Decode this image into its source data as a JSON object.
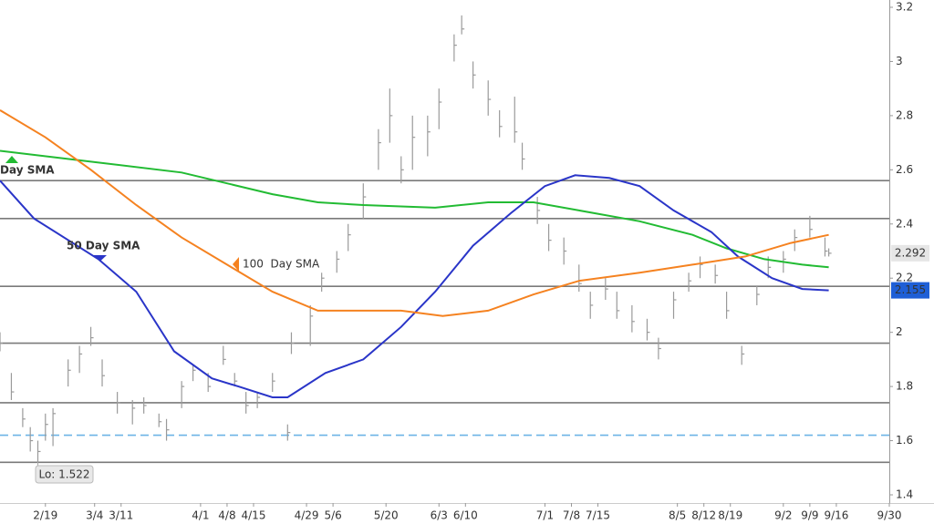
{
  "chart_data": {
    "type": "ohlc",
    "xlim": [
      "2/7",
      "9/30"
    ],
    "xticks": [
      "2/19",
      "3/4",
      "3/11",
      "4/1",
      "4/8",
      "4/15",
      "4/29",
      "5/6",
      "5/20",
      "6/3",
      "6/10",
      "7/1",
      "7/8",
      "7/15",
      "8/5",
      "8/12",
      "8/19",
      "9/2",
      "9/9",
      "9/16",
      "9/30"
    ],
    "ylim": [
      1.4,
      3.2
    ],
    "yticks": [
      1.4,
      1.6,
      1.8,
      2,
      2.2,
      2.4,
      2.6,
      2.8,
      3,
      3.2
    ],
    "bars": {
      "color": "#9a9a9a",
      "x": [
        "2/7",
        "2/10",
        "2/13",
        "2/15",
        "2/17",
        "2/19",
        "2/21",
        "2/25",
        "2/28",
        "3/3",
        "3/6",
        "3/10",
        "3/14",
        "3/17",
        "3/21",
        "3/23",
        "3/27",
        "3/30",
        "4/3",
        "4/7",
        "4/10",
        "4/13",
        "4/16",
        "4/20",
        "4/24",
        "4/25",
        "4/30",
        "5/3",
        "5/7",
        "5/10",
        "5/14",
        "5/18",
        "5/21",
        "5/24",
        "5/27",
        "5/31",
        "6/3",
        "6/7",
        "6/9",
        "6/12",
        "6/16",
        "6/19",
        "6/23",
        "6/25",
        "6/29",
        "7/2",
        "7/6",
        "7/10",
        "7/13",
        "7/17",
        "7/20",
        "7/24",
        "7/28",
        "7/31",
        "8/4",
        "8/8",
        "8/11",
        "8/15",
        "8/18",
        "8/22",
        "8/26",
        "8/29",
        "9/2",
        "9/5",
        "9/9",
        "9/13",
        "9/14"
      ],
      "high": [
        2.0,
        1.85,
        1.72,
        1.65,
        1.6,
        1.7,
        1.72,
        1.9,
        1.95,
        2.02,
        1.9,
        1.78,
        1.75,
        1.76,
        1.7,
        1.68,
        1.82,
        1.88,
        1.85,
        1.95,
        1.85,
        1.78,
        1.78,
        1.85,
        1.66,
        2.0,
        2.1,
        2.22,
        2.3,
        2.4,
        2.55,
        2.75,
        2.9,
        2.65,
        2.8,
        2.8,
        2.9,
        3.1,
        3.17,
        3.0,
        2.93,
        2.82,
        2.87,
        2.7,
        2.5,
        2.4,
        2.35,
        2.25,
        2.15,
        2.2,
        2.15,
        2.1,
        2.05,
        1.98,
        2.15,
        2.22,
        2.28,
        2.25,
        2.15,
        1.95,
        2.17,
        2.28,
        2.3,
        2.38,
        2.43,
        2.35,
        2.31
      ],
      "low": [
        1.93,
        1.75,
        1.65,
        1.56,
        1.522,
        1.6,
        1.58,
        1.8,
        1.85,
        1.95,
        1.8,
        1.7,
        1.66,
        1.7,
        1.65,
        1.6,
        1.72,
        1.82,
        1.78,
        1.88,
        1.8,
        1.7,
        1.72,
        1.78,
        1.6,
        1.92,
        1.95,
        2.15,
        2.22,
        2.3,
        2.42,
        2.6,
        2.7,
        2.55,
        2.6,
        2.65,
        2.75,
        3.0,
        3.1,
        2.9,
        2.8,
        2.72,
        2.7,
        2.6,
        2.4,
        2.3,
        2.25,
        2.15,
        2.05,
        2.12,
        2.05,
        2.0,
        1.97,
        1.9,
        2.05,
        2.15,
        2.2,
        2.18,
        2.05,
        1.88,
        2.1,
        2.2,
        2.22,
        2.3,
        2.35,
        2.28,
        2.28
      ],
      "close": [
        1.96,
        1.78,
        1.68,
        1.6,
        1.56,
        1.66,
        1.7,
        1.86,
        1.92,
        1.98,
        1.84,
        1.74,
        1.72,
        1.73,
        1.67,
        1.64,
        1.8,
        1.86,
        1.8,
        1.9,
        1.82,
        1.73,
        1.76,
        1.82,
        1.63,
        1.96,
        2.06,
        2.2,
        2.27,
        2.36,
        2.5,
        2.7,
        2.8,
        2.6,
        2.72,
        2.74,
        2.85,
        3.06,
        3.12,
        2.95,
        2.86,
        2.76,
        2.74,
        2.64,
        2.45,
        2.34,
        2.3,
        2.18,
        2.1,
        2.16,
        2.08,
        2.04,
        2.0,
        1.94,
        2.12,
        2.19,
        2.25,
        2.21,
        2.08,
        1.92,
        2.14,
        2.24,
        2.27,
        2.35,
        2.38,
        2.3,
        2.292
      ]
    },
    "series": [
      {
        "name": "Day SMA",
        "color": "#22bb33",
        "x": [
          "2/7",
          "3/3",
          "3/27",
          "4/8",
          "4/20",
          "5/2",
          "5/14",
          "6/2",
          "6/16",
          "6/28",
          "7/10",
          "7/26",
          "8/9",
          "8/18",
          "8/28",
          "9/7",
          "9/14"
        ],
        "values": [
          2.67,
          2.63,
          2.59,
          2.55,
          2.51,
          2.48,
          2.47,
          2.46,
          2.48,
          2.48,
          2.45,
          2.41,
          2.36,
          2.31,
          2.27,
          2.25,
          2.24
        ]
      },
      {
        "name": "50 Day SMA",
        "color": "#2a35c8",
        "x": [
          "2/7",
          "2/16",
          "3/5",
          "3/15",
          "3/25",
          "4/4",
          "4/11",
          "4/20",
          "4/24",
          "5/4",
          "5/14",
          "5/24",
          "6/2",
          "6/12",
          "6/22",
          "7/1",
          "7/9",
          "7/18",
          "7/26",
          "8/4",
          "8/14",
          "8/21",
          "8/30",
          "9/7",
          "9/14"
        ],
        "values": [
          2.56,
          2.42,
          2.27,
          2.15,
          1.93,
          1.83,
          1.8,
          1.76,
          1.76,
          1.85,
          1.9,
          2.02,
          2.15,
          2.32,
          2.44,
          2.54,
          2.58,
          2.57,
          2.54,
          2.45,
          2.37,
          2.28,
          2.2,
          2.16,
          2.155
        ]
      },
      {
        "name": "100  Day SMA",
        "color": "#f58220",
        "x": [
          "2/7",
          "2/19",
          "3/3",
          "3/15",
          "3/27",
          "4/8",
          "4/20",
          "5/2",
          "5/14",
          "5/24",
          "6/4",
          "6/16",
          "6/28",
          "7/10",
          "7/26",
          "8/9",
          "8/23",
          "9/4",
          "9/14"
        ],
        "values": [
          2.82,
          2.72,
          2.6,
          2.47,
          2.35,
          2.25,
          2.15,
          2.08,
          2.08,
          2.08,
          2.06,
          2.08,
          2.14,
          2.19,
          2.22,
          2.25,
          2.28,
          2.33,
          2.36
        ]
      }
    ],
    "levels": [
      2.56,
      2.42,
      2.17,
      1.96,
      1.74,
      1.52
    ],
    "dashed_level": 1.62,
    "low_note": {
      "label": "Lo: 1.522",
      "x": "2/17",
      "value": 1.522
    },
    "price_markers": [
      {
        "value": 2.292,
        "color": "#e6e6e6",
        "text_color": "#333333"
      },
      {
        "value": 2.155,
        "color": "#1f5fd6",
        "text_color": "#ffffff"
      }
    ]
  }
}
